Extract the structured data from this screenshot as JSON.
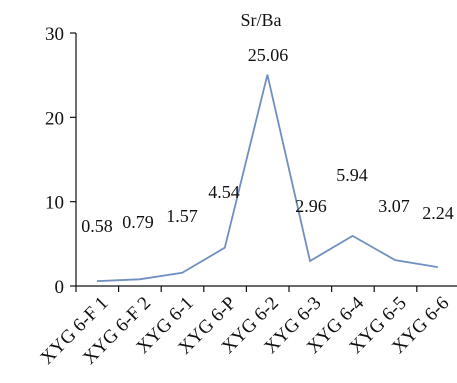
{
  "chart_data": {
    "type": "line",
    "title": "Sr/Ba",
    "xlabel": "",
    "ylabel": "",
    "categories": [
      "XYG 6-F 1",
      "XYG 6-F 2",
      "XYG 6-1",
      "XYG 6-P",
      "XYG 6-2",
      "XYG 6-3",
      "XYG 6-4",
      "XYG 6-5",
      "XYG 6-6"
    ],
    "series": [
      {
        "values": [
          0.58,
          0.79,
          1.57,
          4.54,
          25.06,
          2.96,
          5.94,
          3.07,
          2.24
        ],
        "data_labels": [
          "0.58",
          "0.79",
          "1.57",
          "4.54",
          "25.06",
          "2.96",
          "5.94",
          "3.07",
          "2.24"
        ]
      }
    ],
    "ylim": [
      0,
      30
    ],
    "yticks": [
      "0",
      "10",
      "20",
      "30"
    ],
    "grid": false,
    "legend": "none",
    "line_color": "#6f8fc0"
  }
}
